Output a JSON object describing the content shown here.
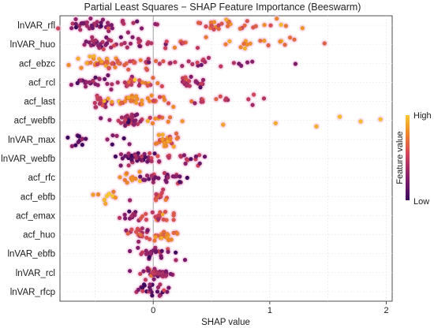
{
  "chart_data": {
    "type": "scatter",
    "subtype": "beeswarm",
    "title": "Partial Least Squares − SHAP Feature Importance (Beeswarm)",
    "xlabel": "SHAP value",
    "ylabel": "",
    "xlim": [
      -0.8,
      2.05
    ],
    "xticks": [
      0,
      1,
      2
    ],
    "grid": true,
    "zero_line": true,
    "colorbar": {
      "title": "Feature value",
      "high_label": "High",
      "low_label": "Low",
      "colors": [
        "#3b0a5e",
        "#8a1f6e",
        "#d4455a",
        "#f08a2a",
        "#f8c82f"
      ]
    },
    "features": [
      {
        "name": "lnVAR_rfl",
        "clusters": [
          [
            -0.55,
            0.11,
            0.25,
            30
          ],
          [
            -0.2,
            0.12,
            0.3,
            12
          ],
          [
            0.5,
            0.08,
            0.6,
            14
          ],
          [
            0.75,
            0.1,
            0.65,
            10
          ],
          [
            1.05,
            0.1,
            0.7,
            5
          ]
        ],
        "outliers": [
          [
            1.28,
            0.8
          ]
        ]
      },
      {
        "name": "lnVAR_huo",
        "clusters": [
          [
            -0.45,
            0.1,
            0.25,
            26
          ],
          [
            -0.15,
            0.1,
            0.35,
            14
          ],
          [
            0.3,
            0.15,
            0.55,
            10
          ],
          [
            0.75,
            0.12,
            0.75,
            10
          ],
          [
            1.1,
            0.15,
            0.75,
            6
          ]
        ],
        "outliers": [
          [
            1.47,
            0.6
          ]
        ]
      },
      {
        "name": "acf_ebzc",
        "clusters": [
          [
            -0.5,
            0.1,
            0.75,
            26
          ],
          [
            -0.25,
            0.1,
            0.6,
            16
          ],
          [
            0.05,
            0.15,
            0.45,
            16
          ],
          [
            0.45,
            0.12,
            0.35,
            8
          ],
          [
            0.8,
            0.15,
            0.25,
            6
          ]
        ],
        "outliers": [
          [
            1.22,
            0.2
          ]
        ]
      },
      {
        "name": "acf_rcl",
        "clusters": [
          [
            -0.55,
            0.1,
            0.15,
            18
          ],
          [
            -0.3,
            0.1,
            0.35,
            16
          ],
          [
            -0.05,
            0.1,
            0.65,
            14
          ],
          [
            0.35,
            0.08,
            0.4,
            22
          ]
        ],
        "outliers": []
      },
      {
        "name": "acf_last",
        "clusters": [
          [
            -0.45,
            0.1,
            0.4,
            20
          ],
          [
            -0.15,
            0.1,
            0.75,
            24
          ],
          [
            0.05,
            0.08,
            0.6,
            10
          ],
          [
            0.5,
            0.12,
            0.45,
            14
          ]
        ],
        "outliers": [
          [
            0.95,
            0.4
          ]
        ]
      },
      {
        "name": "acf_webfb",
        "clusters": [
          [
            -0.2,
            0.06,
            0.3,
            36
          ],
          [
            0.05,
            0.08,
            0.7,
            8
          ]
        ],
        "outliers": [
          [
            -0.45,
            0.2
          ],
          [
            0.25,
            0.8
          ],
          [
            0.6,
            0.85
          ],
          [
            1.05,
            0.9
          ],
          [
            1.4,
            0.9
          ],
          [
            1.6,
            0.95
          ],
          [
            1.78,
            0.95
          ],
          [
            1.95,
            0.95
          ]
        ]
      },
      {
        "name": "lnVAR_max",
        "clusters": [
          [
            -0.62,
            0.06,
            0.1,
            12
          ],
          [
            -0.3,
            0.06,
            0.15,
            6
          ],
          [
            0.12,
            0.05,
            0.7,
            26
          ]
        ],
        "outliers": []
      },
      {
        "name": "lnVAR_webfb",
        "clusters": [
          [
            -0.15,
            0.07,
            0.2,
            36
          ],
          [
            0.2,
            0.12,
            0.45,
            16
          ],
          [
            0.4,
            0.06,
            0.3,
            6
          ]
        ],
        "outliers": []
      },
      {
        "name": "acf_rfc",
        "clusters": [
          [
            -0.22,
            0.06,
            0.85,
            12
          ],
          [
            0.02,
            0.08,
            0.3,
            24
          ],
          [
            0.22,
            0.06,
            0.2,
            8
          ]
        ],
        "outliers": []
      },
      {
        "name": "acf_ebfb",
        "clusters": [
          [
            -0.4,
            0.05,
            0.9,
            10
          ],
          [
            0.07,
            0.03,
            0.55,
            14
          ]
        ],
        "outliers": [
          [
            -0.2,
            0.3
          ]
        ]
      },
      {
        "name": "acf_emax",
        "clusters": [
          [
            -0.2,
            0.06,
            0.25,
            12
          ],
          [
            0.05,
            0.08,
            0.55,
            24
          ]
        ],
        "outliers": []
      },
      {
        "name": "acf_huo",
        "clusters": [
          [
            -0.1,
            0.07,
            0.45,
            20
          ],
          [
            0.1,
            0.07,
            0.7,
            20
          ]
        ],
        "outliers": []
      },
      {
        "name": "lnVAR_ebfb",
        "clusters": [
          [
            -0.05,
            0.04,
            0.3,
            14
          ],
          [
            0.05,
            0.08,
            0.25,
            16
          ]
        ],
        "outliers": [
          [
            -0.2,
            0.2
          ]
        ]
      },
      {
        "name": "lnVAR_rcl",
        "clusters": [
          [
            -0.05,
            0.05,
            0.35,
            16
          ],
          [
            0.05,
            0.06,
            0.3,
            16
          ]
        ],
        "outliers": [
          [
            -0.2,
            0.2
          ],
          [
            0.15,
            0.2
          ]
        ]
      },
      {
        "name": "lnVAR_rfcp",
        "clusters": [
          [
            -0.05,
            0.05,
            0.2,
            14
          ],
          [
            0.08,
            0.05,
            0.25,
            10
          ]
        ],
        "outliers": []
      }
    ]
  }
}
